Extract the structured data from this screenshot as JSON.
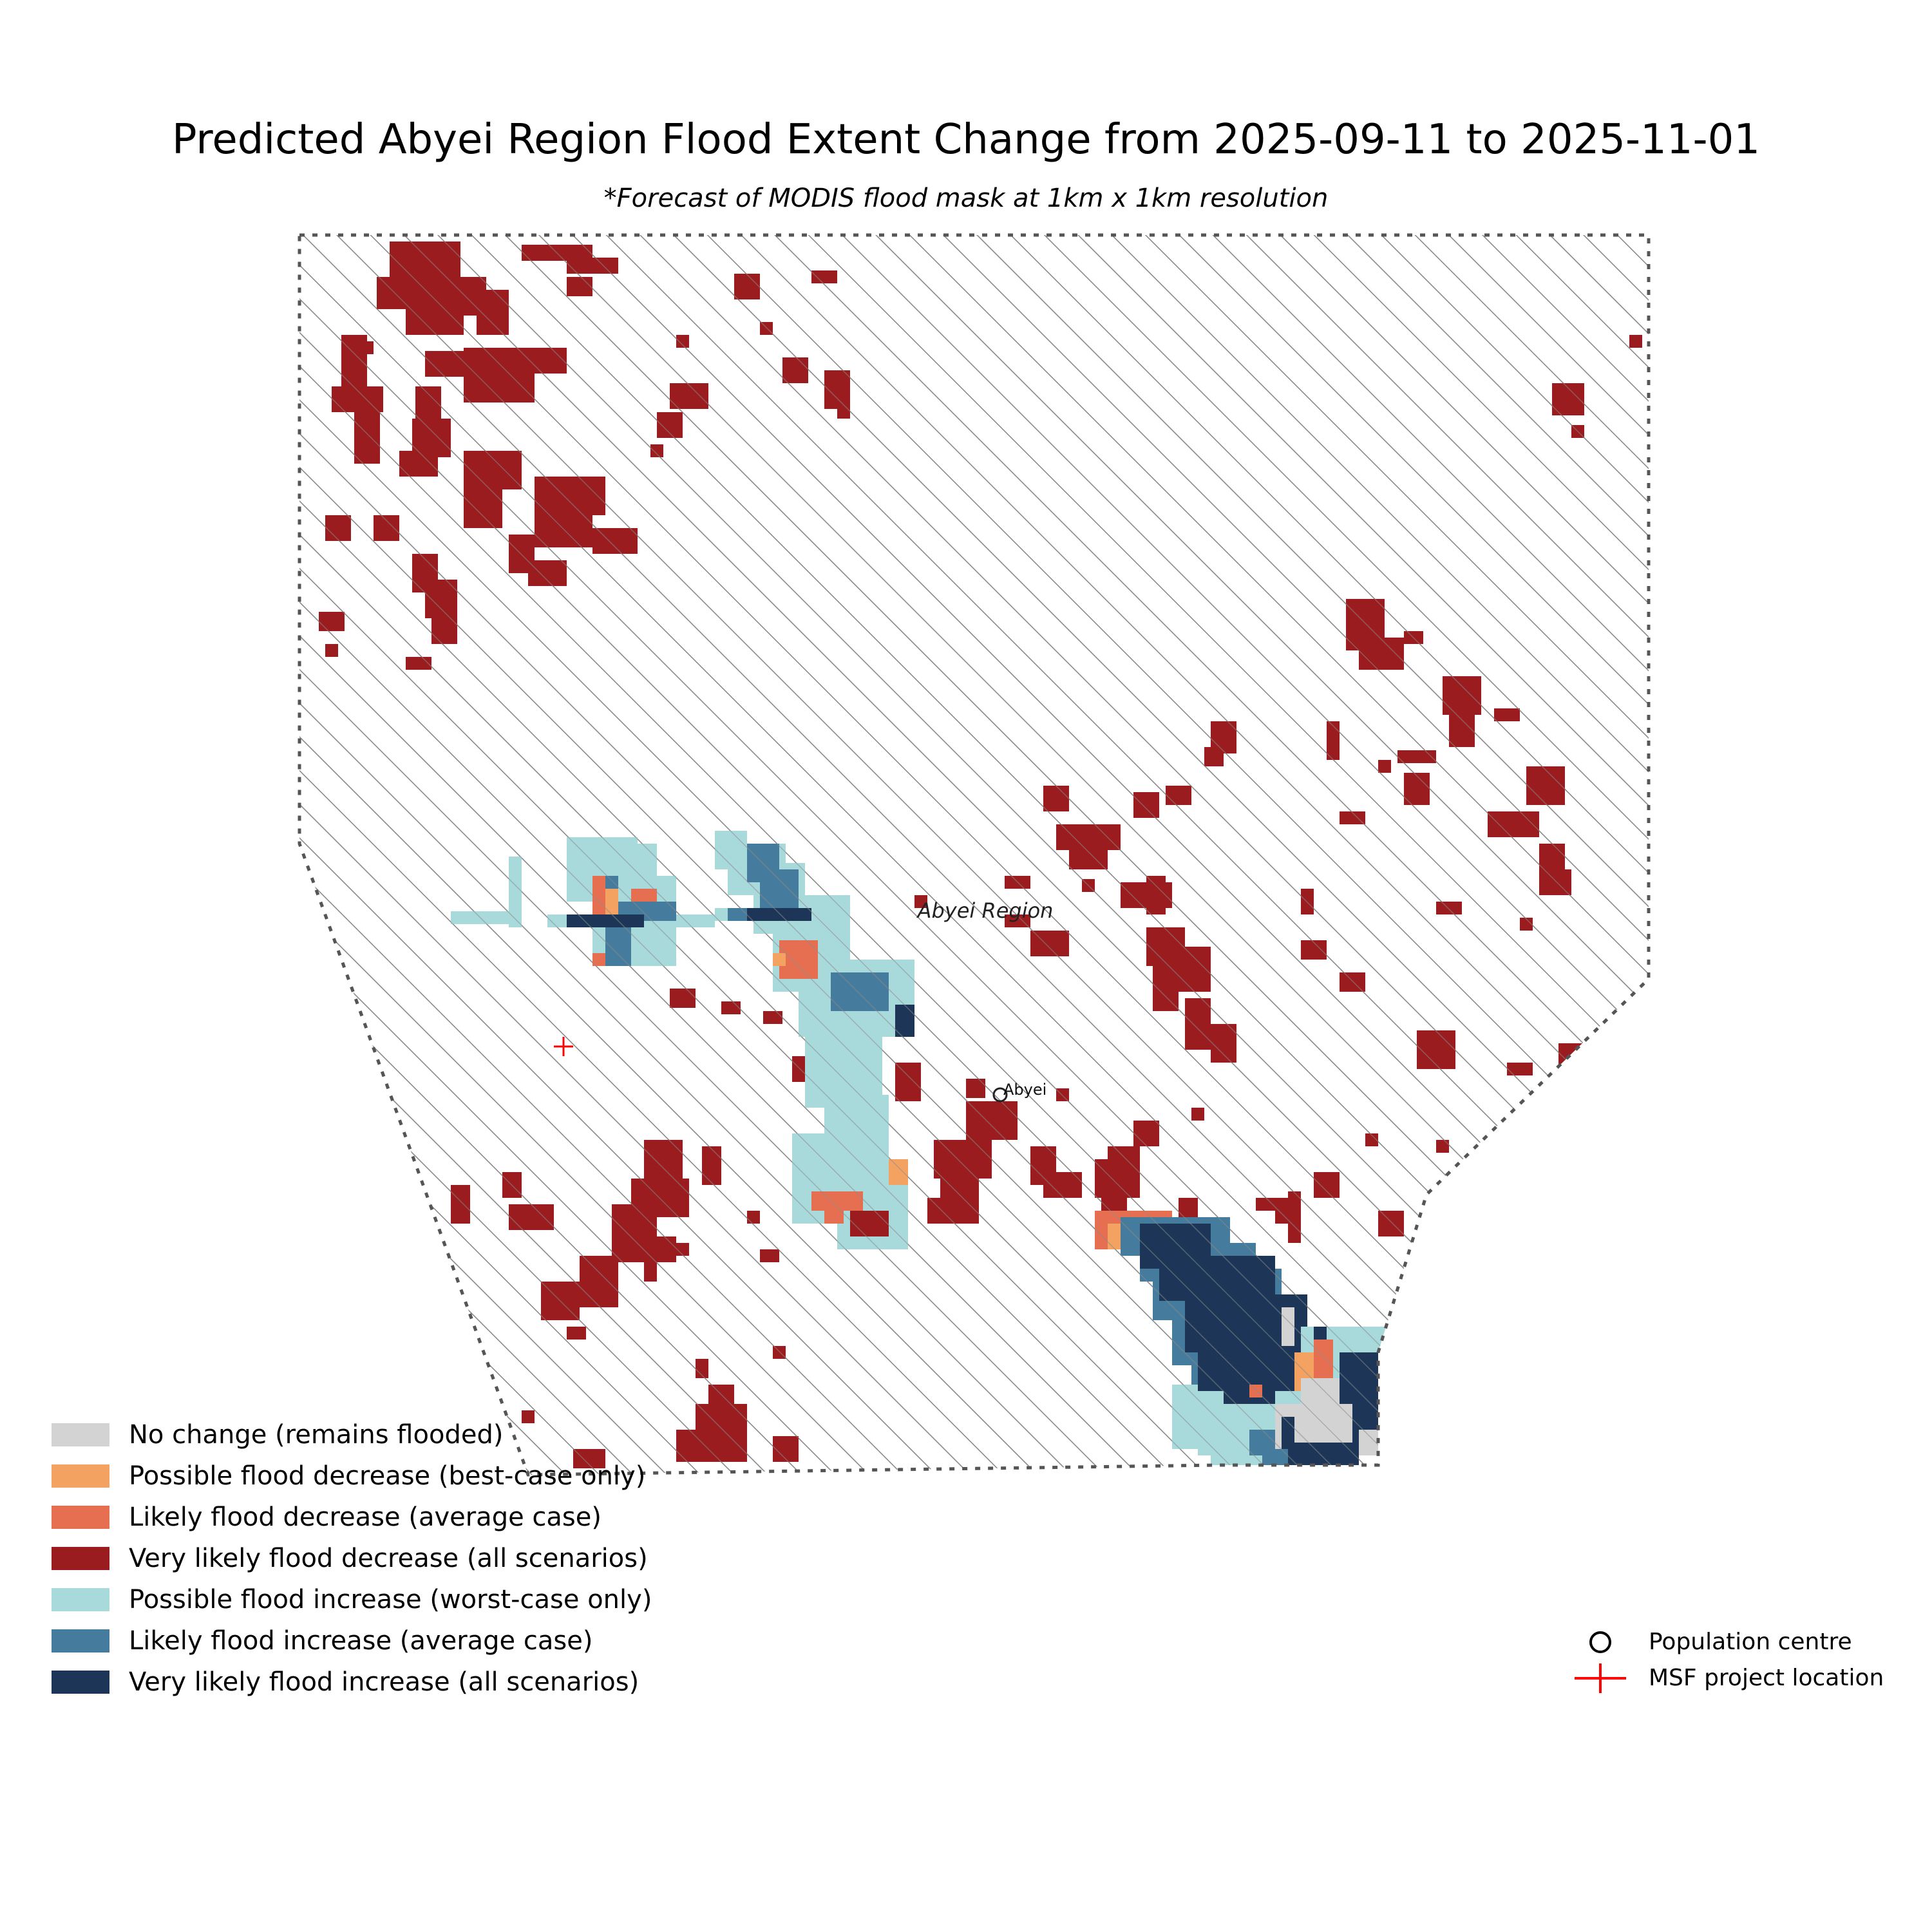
{
  "title": "Predicted Abyei Region Flood Extent Change from 2025-09-11 to 2025-11-01",
  "subtitle": "*Forecast of MODIS flood mask at 1km x 1km resolution",
  "map": {
    "region_label": "Abyei Region",
    "town_label": "Abyei",
    "hatch_color": "#8a8a8a",
    "boundary_color": "#555555"
  },
  "legend": {
    "categories": [
      {
        "label": "No change (remains flooded)",
        "color": "#d3d3d3"
      },
      {
        "label": "Possible flood decrease (best-case only)",
        "color": "#f4a261"
      },
      {
        "label": "Likely flood decrease (average case)",
        "color": "#e76f51"
      },
      {
        "label": "Very likely flood decrease (all scenarios)",
        "color": "#9b1c1f"
      },
      {
        "label": "Possible flood increase (worst-case only)",
        "color": "#a8dadc"
      },
      {
        "label": "Likely flood increase (average case)",
        "color": "#457b9d"
      },
      {
        "label": "Very likely flood increase (all scenarios)",
        "color": "#1d3557"
      }
    ],
    "markers": [
      {
        "label": "Population centre",
        "icon": "circle-marker"
      },
      {
        "label": "MSF project location",
        "icon": "plus-marker",
        "color": "#ff0000"
      }
    ]
  }
}
